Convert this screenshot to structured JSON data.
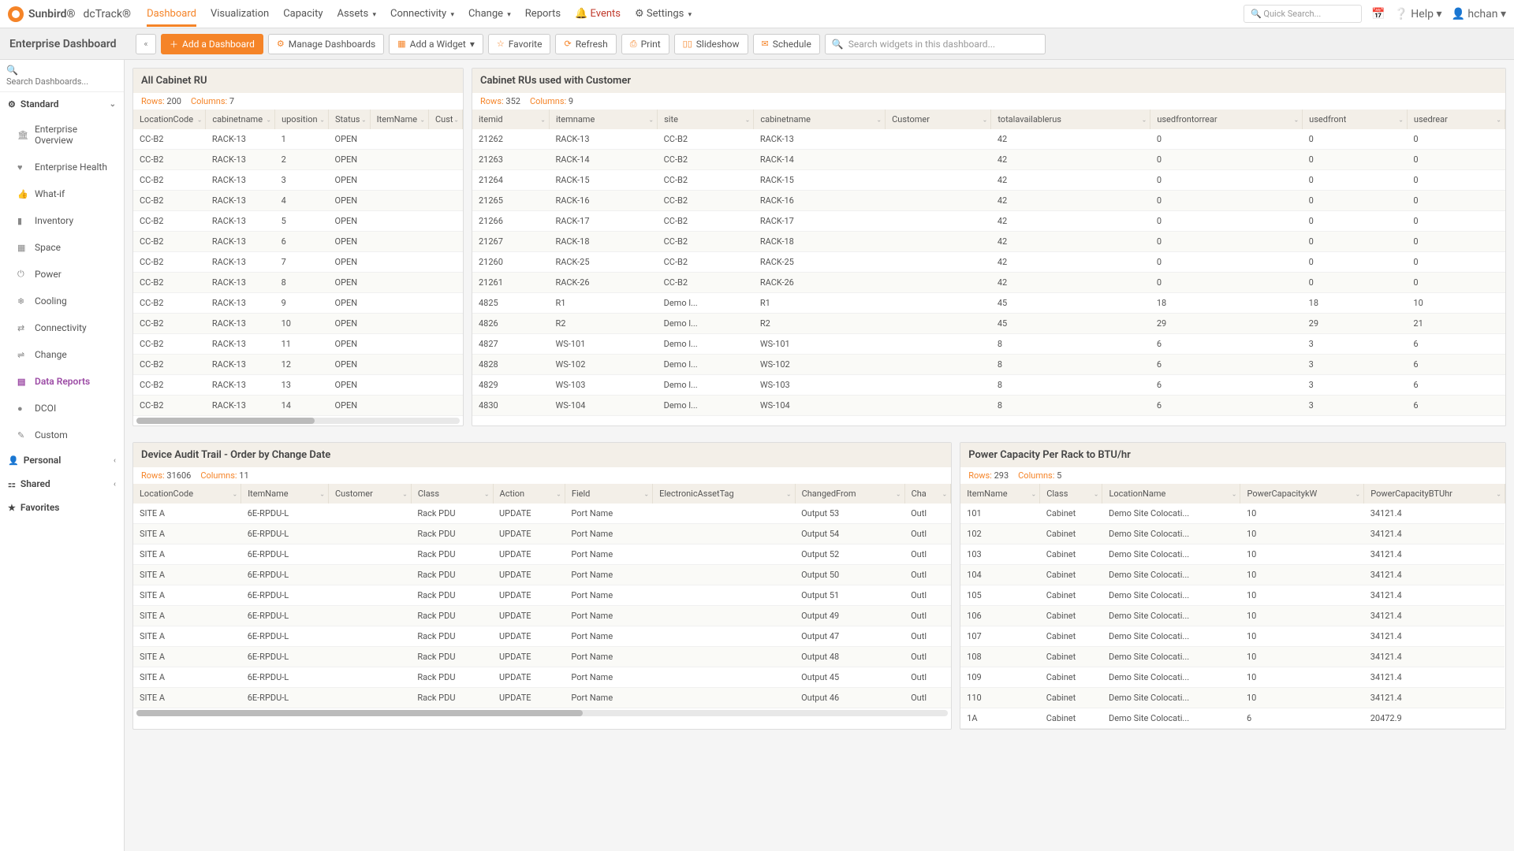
{
  "brand": {
    "name1": "Sunbird®",
    "name2": "dcTrack®"
  },
  "nav": {
    "items": [
      {
        "label": "Dashboard",
        "active": true
      },
      {
        "label": "Visualization"
      },
      {
        "label": "Capacity"
      },
      {
        "label": "Assets",
        "caret": true
      },
      {
        "label": "Connectivity",
        "caret": true
      },
      {
        "label": "Change",
        "caret": true
      },
      {
        "label": "Reports"
      },
      {
        "label": "Events",
        "alert": true,
        "icon": "🔔"
      },
      {
        "label": "Settings",
        "caret": true,
        "icon": "⚙"
      }
    ],
    "search_placeholder": "Quick Search...",
    "help": "Help",
    "user": "hchan"
  },
  "toolbar": {
    "title": "Enterprise Dashboard",
    "add": "Add a Dashboard",
    "manage": "Manage Dashboards",
    "widget": "Add a Widget",
    "favorite": "Favorite",
    "refresh": "Refresh",
    "print": "Print",
    "slideshow": "Slideshow",
    "schedule": "Schedule",
    "search": "Search widgets in this dashboard..."
  },
  "sidebar": {
    "search": "Search Dashboards...",
    "sections": [
      {
        "label": "Standard",
        "icon": "⚙",
        "expanded": true,
        "items": [
          {
            "label": "Enterprise Overview",
            "icon": "🏛"
          },
          {
            "label": "Enterprise Health",
            "icon": "♥"
          },
          {
            "label": "What-if",
            "icon": "👍"
          },
          {
            "label": "Inventory",
            "icon": "▮"
          },
          {
            "label": "Space",
            "icon": "▦"
          },
          {
            "label": "Power",
            "icon": "⏻"
          },
          {
            "label": "Cooling",
            "icon": "❄"
          },
          {
            "label": "Connectivity",
            "icon": "⇄"
          },
          {
            "label": "Change",
            "icon": "⇌"
          },
          {
            "label": "Data Reports",
            "icon": "▤",
            "active": true
          },
          {
            "label": "DCOI",
            "icon": "●"
          },
          {
            "label": "Custom",
            "icon": "✎"
          }
        ]
      },
      {
        "label": "Personal",
        "icon": "👤",
        "chev": true
      },
      {
        "label": "Shared",
        "icon": "⚏",
        "chev": true
      },
      {
        "label": "Favorites",
        "icon": "★"
      }
    ]
  },
  "widgets": {
    "w1": {
      "title": "All Cabinet RU",
      "rows": "200",
      "cols": "7",
      "headers": [
        "LocationCode",
        "cabinetname",
        "uposition",
        "Status",
        "ItemName",
        "Cust"
      ],
      "data": [
        [
          "CC-B2",
          "RACK-13",
          "1",
          "OPEN",
          "",
          ""
        ],
        [
          "CC-B2",
          "RACK-13",
          "2",
          "OPEN",
          "",
          ""
        ],
        [
          "CC-B2",
          "RACK-13",
          "3",
          "OPEN",
          "",
          ""
        ],
        [
          "CC-B2",
          "RACK-13",
          "4",
          "OPEN",
          "",
          ""
        ],
        [
          "CC-B2",
          "RACK-13",
          "5",
          "OPEN",
          "",
          ""
        ],
        [
          "CC-B2",
          "RACK-13",
          "6",
          "OPEN",
          "",
          ""
        ],
        [
          "CC-B2",
          "RACK-13",
          "7",
          "OPEN",
          "",
          ""
        ],
        [
          "CC-B2",
          "RACK-13",
          "8",
          "OPEN",
          "",
          ""
        ],
        [
          "CC-B2",
          "RACK-13",
          "9",
          "OPEN",
          "",
          ""
        ],
        [
          "CC-B2",
          "RACK-13",
          "10",
          "OPEN",
          "",
          ""
        ],
        [
          "CC-B2",
          "RACK-13",
          "11",
          "OPEN",
          "",
          ""
        ],
        [
          "CC-B2",
          "RACK-13",
          "12",
          "OPEN",
          "",
          ""
        ],
        [
          "CC-B2",
          "RACK-13",
          "13",
          "OPEN",
          "",
          ""
        ],
        [
          "CC-B2",
          "RACK-13",
          "14",
          "OPEN",
          "",
          ""
        ]
      ]
    },
    "w2": {
      "title": "Cabinet RUs used with Customer",
      "rows": "352",
      "cols": "9",
      "headers": [
        "itemid",
        "itemname",
        "site",
        "cabinetname",
        "Customer",
        "totalavailablerus",
        "usedfrontorrear",
        "usedfront",
        "usedrear"
      ],
      "data": [
        [
          "21262",
          "RACK-13",
          "CC-B2",
          "RACK-13",
          "",
          "42",
          "0",
          "0",
          "0"
        ],
        [
          "21263",
          "RACK-14",
          "CC-B2",
          "RACK-14",
          "",
          "42",
          "0",
          "0",
          "0"
        ],
        [
          "21264",
          "RACK-15",
          "CC-B2",
          "RACK-15",
          "",
          "42",
          "0",
          "0",
          "0"
        ],
        [
          "21265",
          "RACK-16",
          "CC-B2",
          "RACK-16",
          "",
          "42",
          "0",
          "0",
          "0"
        ],
        [
          "21266",
          "RACK-17",
          "CC-B2",
          "RACK-17",
          "",
          "42",
          "0",
          "0",
          "0"
        ],
        [
          "21267",
          "RACK-18",
          "CC-B2",
          "RACK-18",
          "",
          "42",
          "0",
          "0",
          "0"
        ],
        [
          "21260",
          "RACK-25",
          "CC-B2",
          "RACK-25",
          "",
          "42",
          "0",
          "0",
          "0"
        ],
        [
          "21261",
          "RACK-26",
          "CC-B2",
          "RACK-26",
          "",
          "42",
          "0",
          "0",
          "0"
        ],
        [
          "4825",
          "R1",
          "Demo l...",
          "R1",
          "",
          "45",
          "18",
          "18",
          "10"
        ],
        [
          "4826",
          "R2",
          "Demo l...",
          "R2",
          "",
          "45",
          "29",
          "29",
          "21"
        ],
        [
          "4827",
          "WS-101",
          "Demo l...",
          "WS-101",
          "",
          "8",
          "6",
          "3",
          "6"
        ],
        [
          "4828",
          "WS-102",
          "Demo l...",
          "WS-102",
          "",
          "8",
          "6",
          "3",
          "6"
        ],
        [
          "4829",
          "WS-103",
          "Demo l...",
          "WS-103",
          "",
          "8",
          "6",
          "3",
          "6"
        ],
        [
          "4830",
          "WS-104",
          "Demo l...",
          "WS-104",
          "",
          "8",
          "6",
          "3",
          "6"
        ]
      ]
    },
    "w3": {
      "title": "Device Audit Trail - Order by Change Date",
      "rows": "31606",
      "cols": "11",
      "headers": [
        "LocationCode",
        "ItemName",
        "Customer",
        "Class",
        "Action",
        "Field",
        "ElectronicAssetTag",
        "ChangedFrom",
        "Cha"
      ],
      "data": [
        [
          "SITE A",
          "6E-RPDU-L",
          "",
          "Rack PDU",
          "UPDATE",
          "Port Name",
          "",
          "Output 53",
          "Outl"
        ],
        [
          "SITE A",
          "6E-RPDU-L",
          "",
          "Rack PDU",
          "UPDATE",
          "Port Name",
          "",
          "Output 54",
          "Outl"
        ],
        [
          "SITE A",
          "6E-RPDU-L",
          "",
          "Rack PDU",
          "UPDATE",
          "Port Name",
          "",
          "Output 52",
          "Outl"
        ],
        [
          "SITE A",
          "6E-RPDU-L",
          "",
          "Rack PDU",
          "UPDATE",
          "Port Name",
          "",
          "Output 50",
          "Outl"
        ],
        [
          "SITE A",
          "6E-RPDU-L",
          "",
          "Rack PDU",
          "UPDATE",
          "Port Name",
          "",
          "Output 51",
          "Outl"
        ],
        [
          "SITE A",
          "6E-RPDU-L",
          "",
          "Rack PDU",
          "UPDATE",
          "Port Name",
          "",
          "Output 49",
          "Outl"
        ],
        [
          "SITE A",
          "6E-RPDU-L",
          "",
          "Rack PDU",
          "UPDATE",
          "Port Name",
          "",
          "Output 47",
          "Outl"
        ],
        [
          "SITE A",
          "6E-RPDU-L",
          "",
          "Rack PDU",
          "UPDATE",
          "Port Name",
          "",
          "Output 48",
          "Outl"
        ],
        [
          "SITE A",
          "6E-RPDU-L",
          "",
          "Rack PDU",
          "UPDATE",
          "Port Name",
          "",
          "Output 45",
          "Outl"
        ],
        [
          "SITE A",
          "6E-RPDU-L",
          "",
          "Rack PDU",
          "UPDATE",
          "Port Name",
          "",
          "Output 46",
          "Outl"
        ]
      ]
    },
    "w4": {
      "title": "Power Capacity Per Rack to BTU/hr",
      "rows": "293",
      "cols": "5",
      "headers": [
        "ItemName",
        "Class",
        "LocationName",
        "PowerCapacitykW",
        "PowerCapacityBTUhr"
      ],
      "data": [
        [
          "101",
          "Cabinet",
          "Demo Site Colocati...",
          "10",
          "34121.4"
        ],
        [
          "102",
          "Cabinet",
          "Demo Site Colocati...",
          "10",
          "34121.4"
        ],
        [
          "103",
          "Cabinet",
          "Demo Site Colocati...",
          "10",
          "34121.4"
        ],
        [
          "104",
          "Cabinet",
          "Demo Site Colocati...",
          "10",
          "34121.4"
        ],
        [
          "105",
          "Cabinet",
          "Demo Site Colocati...",
          "10",
          "34121.4"
        ],
        [
          "106",
          "Cabinet",
          "Demo Site Colocati...",
          "10",
          "34121.4"
        ],
        [
          "107",
          "Cabinet",
          "Demo Site Colocati...",
          "10",
          "34121.4"
        ],
        [
          "108",
          "Cabinet",
          "Demo Site Colocati...",
          "10",
          "34121.4"
        ],
        [
          "109",
          "Cabinet",
          "Demo Site Colocati...",
          "10",
          "34121.4"
        ],
        [
          "110",
          "Cabinet",
          "Demo Site Colocati...",
          "10",
          "34121.4"
        ],
        [
          "1A",
          "Cabinet",
          "Demo Site Colocati...",
          "6",
          "20472.9"
        ]
      ]
    }
  },
  "labels": {
    "rows": "Rows:",
    "cols": "Columns:"
  }
}
